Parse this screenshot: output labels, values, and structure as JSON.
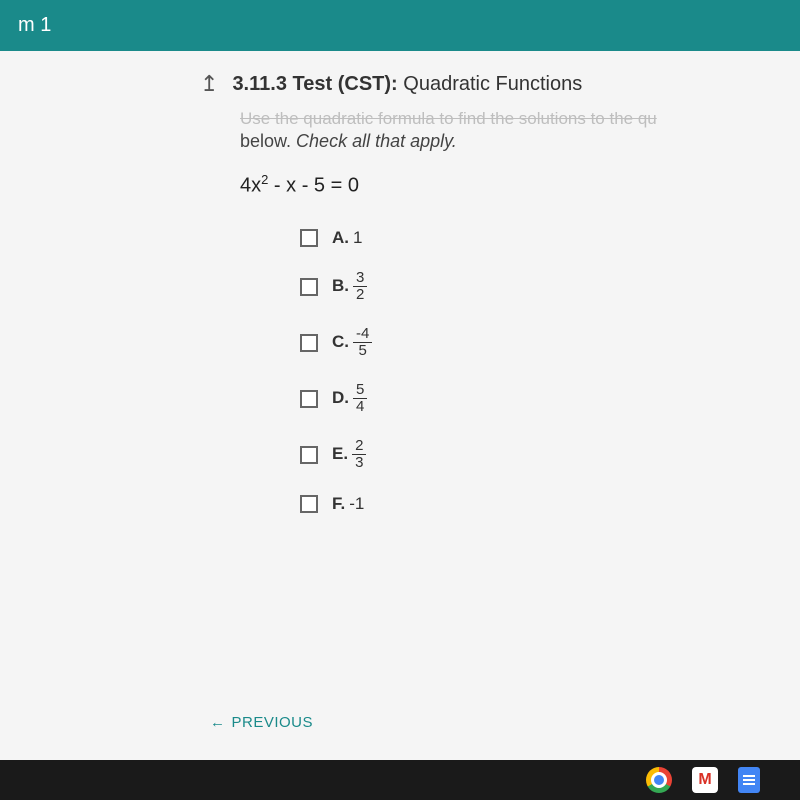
{
  "topbar": {
    "label": "m 1"
  },
  "header": {
    "section_no": "3.11.3",
    "title_bold": "Test (CST):",
    "title_light": "Quadratic Functions"
  },
  "question": {
    "cutoff_text": "Use the quadratic formula to find the solutions to the qu",
    "instruction_prefix": "below. ",
    "instruction_em": "Check all that apply.",
    "equation_a": "4",
    "equation_var": "x",
    "equation_rest": " - x - 5 = 0"
  },
  "options": [
    {
      "letter": "A.",
      "type": "plain",
      "value": "1"
    },
    {
      "letter": "B.",
      "type": "frac",
      "num": "3",
      "den": "2"
    },
    {
      "letter": "C.",
      "type": "frac",
      "num": "-4",
      "den": "5"
    },
    {
      "letter": "D.",
      "type": "frac",
      "num": "5",
      "den": "4"
    },
    {
      "letter": "E.",
      "type": "frac",
      "num": "2",
      "den": "3"
    },
    {
      "letter": "F.",
      "type": "plain",
      "value": "-1"
    }
  ],
  "nav": {
    "previous": "PREVIOUS"
  },
  "colors": {
    "teal": "#1a8a8a",
    "bg": "#f5f5f5",
    "taskbar": "#1a1a1a"
  }
}
